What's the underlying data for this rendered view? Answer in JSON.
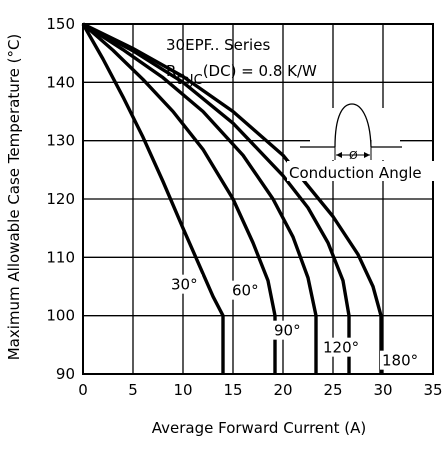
{
  "chart_data": {
    "type": "line",
    "xlabel": "Average Forward Current (A)",
    "ylabel": "Maximum Allowable Case Temperature (°C)",
    "xlim": [
      0,
      35
    ],
    "ylim": [
      90,
      150
    ],
    "x_ticks": [
      0,
      5,
      10,
      15,
      20,
      25,
      30,
      35
    ],
    "y_ticks": [
      90,
      100,
      110,
      120,
      130,
      140,
      150
    ],
    "grid": true,
    "annotations": {
      "series_title": "30EPF.. Series",
      "rth_prefix": "R",
      "rth_subscript": "thJC",
      "rth_suffix": "(DC) = 0.8 K/W",
      "inset_label": "Conduction Angle",
      "inset_symbol": "Ø"
    },
    "series": [
      {
        "name": "30°",
        "x": [
          0,
          2,
          4,
          6,
          8,
          10,
          12,
          13,
          14,
          14
        ],
        "y": [
          150,
          144,
          137.5,
          130.6,
          123,
          115,
          107.2,
          103.3,
          100,
          90
        ]
      },
      {
        "name": "60°",
        "x": [
          0,
          3,
          6,
          9,
          12,
          15,
          17,
          18.5,
          19.2,
          19.2
        ],
        "y": [
          150,
          145.5,
          140.5,
          135,
          128.5,
          120,
          112.5,
          106,
          100,
          90
        ]
      },
      {
        "name": "90°",
        "x": [
          0,
          4,
          8,
          12,
          16,
          19,
          21,
          22.5,
          23.3,
          23.3
        ],
        "y": [
          150,
          145.6,
          140.8,
          135,
          127.5,
          120,
          113.5,
          106.5,
          100,
          90
        ]
      },
      {
        "name": "120°",
        "x": [
          0,
          5,
          10,
          15,
          20,
          22.5,
          24.5,
          26,
          26.6,
          26.6
        ],
        "y": [
          150,
          145.4,
          140,
          133,
          124,
          118.5,
          112.5,
          106,
          100,
          90
        ]
      },
      {
        "name": "180°",
        "x": [
          0,
          5,
          10,
          15,
          20,
          25,
          27.5,
          29,
          29.8,
          29.8
        ],
        "y": [
          150,
          145.8,
          141,
          135,
          127.5,
          117,
          110.5,
          105,
          100,
          90
        ]
      }
    ]
  }
}
